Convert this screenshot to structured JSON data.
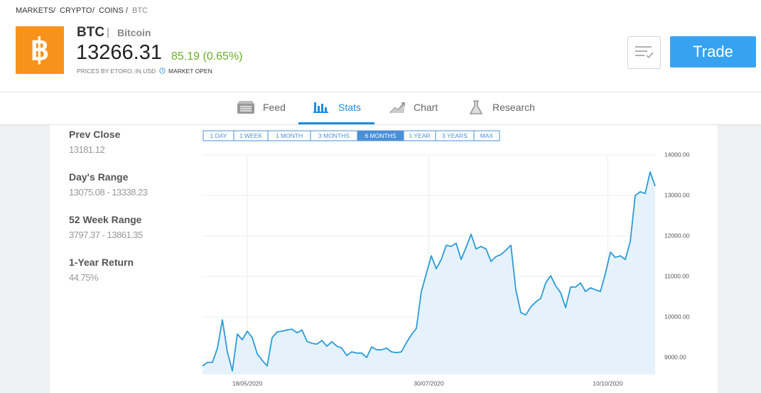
{
  "breadcrumbs": [
    "MARKETS",
    "CRYPTO",
    "COINS",
    "BTC"
  ],
  "header": {
    "symbol": "BTC",
    "name": "Bitcoin",
    "price": "13266.31",
    "change": "85.19 (0.65%)",
    "source_note": "PRICES BY ETORO, IN USD",
    "market_status": "MARKET OPEN",
    "trade_button": "Trade"
  },
  "tabs": {
    "items": [
      "Feed",
      "Stats",
      "Chart",
      "Research"
    ],
    "selected": "Stats"
  },
  "stats": [
    {
      "label": "Prev Close",
      "value": "13181.12"
    },
    {
      "label": "Day's Range",
      "value": "13075.08 - 13338.23"
    },
    {
      "label": "52 Week Range",
      "value": "3797.37 - 13861.35"
    },
    {
      "label": "1-Year Return",
      "value": "44.75%"
    }
  ],
  "chart_data": {
    "type": "line",
    "ranges": [
      "1 DAY",
      "1 WEEK",
      "1 MONTH",
      "3 MONTHS",
      "6 MONTHS",
      "1 YEAR",
      "3 YEARS",
      "MAX"
    ],
    "selected_range": "6 MONTHS",
    "x": [
      "2020-04-30",
      "2020-05-02",
      "2020-05-04",
      "2020-05-06",
      "2020-05-08",
      "2020-05-10",
      "2020-05-12",
      "2020-05-14",
      "2020-05-16",
      "2020-05-18",
      "2020-05-20",
      "2020-05-22",
      "2020-05-24",
      "2020-05-26",
      "2020-05-28",
      "2020-05-30",
      "2020-06-01",
      "2020-06-03",
      "2020-06-05",
      "2020-06-07",
      "2020-06-09",
      "2020-06-11",
      "2020-06-13",
      "2020-06-15",
      "2020-06-17",
      "2020-06-19",
      "2020-06-21",
      "2020-06-23",
      "2020-06-25",
      "2020-06-27",
      "2020-06-29",
      "2020-07-01",
      "2020-07-03",
      "2020-07-05",
      "2020-07-07",
      "2020-07-09",
      "2020-07-11",
      "2020-07-13",
      "2020-07-15",
      "2020-07-17",
      "2020-07-19",
      "2020-07-21",
      "2020-07-23",
      "2020-07-25",
      "2020-07-27",
      "2020-07-29",
      "2020-07-31",
      "2020-08-02",
      "2020-08-04",
      "2020-08-06",
      "2020-08-08",
      "2020-08-10",
      "2020-08-12",
      "2020-08-14",
      "2020-08-16",
      "2020-08-18",
      "2020-08-20",
      "2020-08-22",
      "2020-08-24",
      "2020-08-26",
      "2020-08-28",
      "2020-08-30",
      "2020-09-01",
      "2020-09-03",
      "2020-09-05",
      "2020-09-07",
      "2020-09-09",
      "2020-09-11",
      "2020-09-13",
      "2020-09-15",
      "2020-09-17",
      "2020-09-19",
      "2020-09-21",
      "2020-09-23",
      "2020-09-25",
      "2020-09-27",
      "2020-09-29",
      "2020-10-01",
      "2020-10-03",
      "2020-10-05",
      "2020-10-07",
      "2020-10-09",
      "2020-10-11",
      "2020-10-13",
      "2020-10-15",
      "2020-10-17",
      "2020-10-19",
      "2020-10-21",
      "2020-10-23",
      "2020-10-25",
      "2020-10-27",
      "2020-10-29"
    ],
    "series": [
      {
        "color": "#2b9bd8",
        "values": [
          8790,
          8880,
          8880,
          9230,
          9930,
          9140,
          8670,
          9580,
          9440,
          9650,
          9490,
          9090,
          8930,
          8790,
          9490,
          9630,
          9650,
          9680,
          9700,
          9610,
          9680,
          9400,
          9350,
          9330,
          9420,
          9280,
          9390,
          9280,
          9230,
          9050,
          9140,
          9110,
          9110,
          9000,
          9260,
          9190,
          9190,
          9230,
          9140,
          9120,
          9140,
          9370,
          9560,
          9720,
          10630,
          11070,
          11510,
          11190,
          11420,
          11770,
          11740,
          11820,
          11420,
          11720,
          12040,
          11680,
          11740,
          11680,
          11370,
          11490,
          11540,
          11650,
          11770,
          10670,
          10110,
          10050,
          10250,
          10370,
          10460,
          10840,
          11020,
          10770,
          10600,
          10230,
          10740,
          10740,
          10840,
          10630,
          10720,
          10670,
          10630,
          11070,
          11600,
          11470,
          11510,
          11420,
          11860,
          13000,
          13090,
          13050,
          13580,
          13230
        ]
      }
    ],
    "area_color": "#e6f2fb",
    "xlim": [
      "2020-04-30",
      "2020-10-29"
    ],
    "xticks": [
      {
        "value": "2020-05-18",
        "label": "18/05/2020"
      },
      {
        "value": "2020-07-30",
        "label": "30/07/2020"
      },
      {
        "value": "2020-10-10",
        "label": "10/10/2020"
      }
    ],
    "ylim": [
      8580,
      14000
    ],
    "yticks": [
      {
        "value": 9000,
        "label": "9000.00"
      },
      {
        "value": 10000,
        "label": "10000.00"
      },
      {
        "value": 11000,
        "label": "11000.00"
      },
      {
        "value": 12000,
        "label": "12000.00"
      },
      {
        "value": 13000,
        "label": "13000.00"
      },
      {
        "value": 14000,
        "label": "14000.00"
      }
    ],
    "grid": true
  }
}
